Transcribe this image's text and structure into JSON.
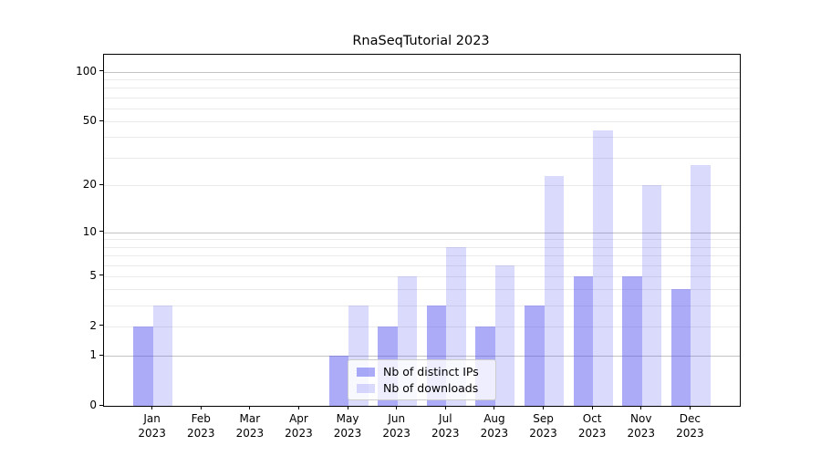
{
  "chart_data": {
    "type": "bar",
    "title": "RnaSeqTutorial 2023",
    "categories": [
      "Jan 2023",
      "Feb 2023",
      "Mar 2023",
      "Apr 2023",
      "May 2023",
      "Jun 2023",
      "Jul 2023",
      "Aug 2023",
      "Sep 2023",
      "Oct 2023",
      "Nov 2023",
      "Dec 2023"
    ],
    "series": [
      {
        "name": "Nb of distinct IPs",
        "color": "rgba(80,80,240,0.48)",
        "color_hex": "#a9a9f5",
        "values": [
          2,
          0,
          0,
          0,
          1,
          2,
          3,
          2,
          3,
          5,
          5,
          4
        ]
      },
      {
        "name": "Nb of downloads",
        "color": "rgba(80,80,240,0.21)",
        "color_hex": "#dcdcf8",
        "values": [
          3,
          0,
          0,
          0,
          3,
          5,
          8,
          6,
          23,
          44,
          20,
          27
        ]
      }
    ],
    "xlabel": "",
    "ylabel": "",
    "yticks": [
      0,
      1,
      2,
      5,
      10,
      20,
      50,
      100
    ],
    "scale": "log1p",
    "ylim": [
      0,
      127
    ],
    "grid": "both",
    "major_grid_values": [
      1,
      10,
      100
    ],
    "minor_grid_values": [
      2,
      3,
      4,
      5,
      6,
      7,
      8,
      9,
      20,
      30,
      40,
      50,
      60,
      70,
      80,
      90
    ],
    "legend_position": "inside-bottom-center"
  },
  "colors": {
    "background": "#ffffff",
    "spine": "#000000",
    "text": "#000000",
    "major_grid": "#c3c3c3",
    "minor_grid": "#eaeaea",
    "legend_border": "#cccccc",
    "legend_background": "rgba(255,255,255,0.8)"
  }
}
